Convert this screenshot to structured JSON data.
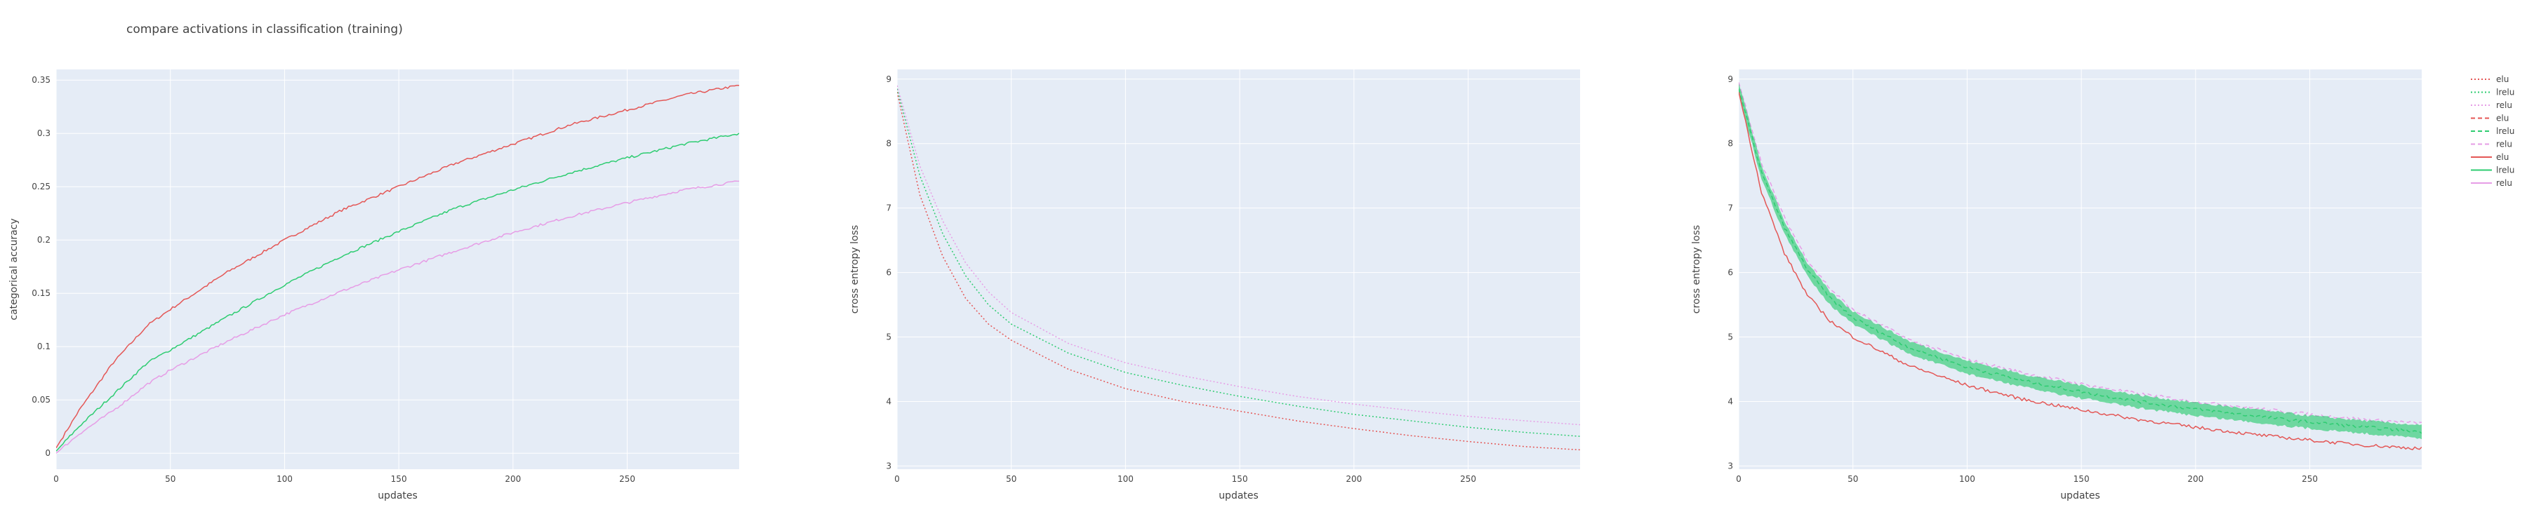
{
  "figure": {
    "title": "compare activations in classification (training)"
  },
  "colors": {
    "elu": "#e45756",
    "lrelu": "#2ecc71",
    "relu": "#e69de6",
    "plot_bg": "#e5ecf6",
    "grid": "#ffffff",
    "text": "#444444"
  },
  "legend": {
    "placement": "right",
    "entries": [
      {
        "label": "elu",
        "style": "dotted",
        "series": "elu"
      },
      {
        "label": "lrelu",
        "style": "dotted",
        "series": "lrelu"
      },
      {
        "label": "relu",
        "style": "dotted",
        "series": "relu"
      },
      {
        "label": "elu",
        "style": "dashed",
        "series": "elu"
      },
      {
        "label": "lrelu",
        "style": "dashed",
        "series": "lrelu"
      },
      {
        "label": "relu",
        "style": "dashed",
        "series": "relu"
      },
      {
        "label": "elu",
        "style": "solid",
        "series": "elu"
      },
      {
        "label": "lrelu",
        "style": "solid",
        "series": "lrelu"
      },
      {
        "label": "relu",
        "style": "solid",
        "series": "relu"
      }
    ]
  },
  "chart_data": [
    {
      "type": "line",
      "xlabel": "updates",
      "ylabel": "categorical accuracy",
      "xlim": [
        0,
        299
      ],
      "ylim": [
        -0.015,
        0.36
      ],
      "xticks": [
        0,
        50,
        100,
        150,
        200,
        250
      ],
      "yticks": [
        0,
        0.05,
        0.1,
        0.15,
        0.2,
        0.25,
        0.3,
        0.35
      ],
      "ytick_labels": [
        "0",
        "0.05",
        "0.1",
        "0.15",
        "0.2",
        "0.25",
        "0.3",
        "0.35"
      ],
      "grid": true,
      "series": [
        {
          "key": "elu",
          "style": "solid",
          "x": [
            0,
            10,
            25,
            40,
            50,
            75,
            100,
            125,
            150,
            175,
            200,
            225,
            250,
            275,
            299
          ],
          "values": [
            0.005,
            0.04,
            0.085,
            0.12,
            0.135,
            0.17,
            0.2,
            0.228,
            0.25,
            0.272,
            0.29,
            0.308,
            0.322,
            0.336,
            0.345
          ]
        },
        {
          "key": "lrelu",
          "style": "solid",
          "x": [
            0,
            10,
            25,
            40,
            50,
            75,
            100,
            125,
            150,
            175,
            200,
            225,
            250,
            275,
            299
          ],
          "values": [
            0.002,
            0.025,
            0.055,
            0.085,
            0.097,
            0.128,
            0.158,
            0.185,
            0.208,
            0.23,
            0.247,
            0.263,
            0.277,
            0.29,
            0.3
          ]
        },
        {
          "key": "relu",
          "style": "solid",
          "x": [
            0,
            10,
            25,
            40,
            50,
            75,
            100,
            125,
            150,
            175,
            200,
            225,
            250,
            275,
            299
          ],
          "values": [
            0.0,
            0.018,
            0.04,
            0.065,
            0.078,
            0.105,
            0.13,
            0.152,
            0.172,
            0.19,
            0.207,
            0.222,
            0.235,
            0.247,
            0.255
          ]
        }
      ]
    },
    {
      "type": "line",
      "xlabel": "updates",
      "ylabel": "cross entropy loss",
      "xlim": [
        0,
        299
      ],
      "ylim": [
        2.95,
        9.15
      ],
      "xticks": [
        0,
        50,
        100,
        150,
        200,
        250
      ],
      "yticks": [
        3,
        4,
        5,
        6,
        7,
        8,
        9
      ],
      "ytick_labels": [
        "3",
        "4",
        "5",
        "6",
        "7",
        "8",
        "9"
      ],
      "grid": true,
      "series": [
        {
          "key": "elu",
          "style": "dotted",
          "x": [
            0,
            10,
            20,
            30,
            40,
            50,
            75,
            100,
            125,
            150,
            175,
            200,
            225,
            250,
            275,
            299
          ],
          "values": [
            8.8,
            7.2,
            6.25,
            5.6,
            5.2,
            4.95,
            4.5,
            4.2,
            4.0,
            3.85,
            3.7,
            3.58,
            3.47,
            3.38,
            3.3,
            3.25
          ]
        },
        {
          "key": "lrelu",
          "style": "dotted",
          "x": [
            0,
            10,
            20,
            30,
            40,
            50,
            75,
            100,
            125,
            150,
            175,
            200,
            225,
            250,
            275,
            299
          ],
          "values": [
            8.85,
            7.5,
            6.6,
            5.95,
            5.5,
            5.2,
            4.75,
            4.45,
            4.25,
            4.08,
            3.93,
            3.8,
            3.7,
            3.6,
            3.52,
            3.46
          ]
        },
        {
          "key": "relu",
          "style": "dotted",
          "x": [
            0,
            10,
            20,
            30,
            40,
            50,
            75,
            100,
            125,
            150,
            175,
            200,
            225,
            250,
            275,
            299
          ],
          "values": [
            8.9,
            7.65,
            6.8,
            6.15,
            5.7,
            5.38,
            4.9,
            4.6,
            4.4,
            4.23,
            4.08,
            3.96,
            3.86,
            3.77,
            3.7,
            3.64
          ]
        }
      ]
    },
    {
      "type": "line",
      "xlabel": "updates",
      "ylabel": "cross entropy loss",
      "xlim": [
        0,
        299
      ],
      "ylim": [
        2.95,
        9.15
      ],
      "xticks": [
        0,
        50,
        100,
        150,
        200,
        250
      ],
      "yticks": [
        3,
        4,
        5,
        6,
        7,
        8,
        9
      ],
      "ytick_labels": [
        "3",
        "4",
        "5",
        "6",
        "7",
        "8",
        "9"
      ],
      "grid": true,
      "series": [
        {
          "key": "relu",
          "style": "dashed",
          "x": [
            0,
            10,
            20,
            30,
            40,
            50,
            75,
            100,
            125,
            150,
            175,
            200,
            225,
            250,
            275,
            299
          ],
          "values": [
            8.95,
            7.7,
            6.85,
            6.2,
            5.75,
            5.42,
            4.95,
            4.65,
            4.44,
            4.27,
            4.12,
            4.0,
            3.9,
            3.8,
            3.72,
            3.66
          ]
        },
        {
          "key": "lrelu",
          "style": "band",
          "x": [
            0,
            10,
            20,
            30,
            40,
            50,
            75,
            100,
            125,
            150,
            175,
            200,
            225,
            250,
            275,
            299
          ],
          "values": [
            8.85,
            7.55,
            6.7,
            6.05,
            5.6,
            5.3,
            4.83,
            4.53,
            4.32,
            4.15,
            4.0,
            3.88,
            3.78,
            3.68,
            3.6,
            3.53
          ],
          "band_half_width": 0.1
        },
        {
          "key": "lrelu",
          "style": "dashed",
          "x": [
            0,
            10,
            20,
            30,
            40,
            50,
            75,
            100,
            125,
            150,
            175,
            200,
            225,
            250,
            275,
            299
          ],
          "values": [
            8.85,
            7.55,
            6.7,
            6.05,
            5.6,
            5.3,
            4.83,
            4.53,
            4.32,
            4.15,
            4.0,
            3.88,
            3.78,
            3.68,
            3.6,
            3.53
          ]
        },
        {
          "key": "elu",
          "style": "solid",
          "x": [
            0,
            10,
            20,
            30,
            40,
            50,
            75,
            100,
            125,
            150,
            175,
            200,
            225,
            250,
            275,
            299
          ],
          "values": [
            8.8,
            7.25,
            6.3,
            5.65,
            5.25,
            5.0,
            4.55,
            4.25,
            4.03,
            3.87,
            3.72,
            3.6,
            3.49,
            3.4,
            3.32,
            3.27
          ]
        }
      ]
    }
  ]
}
